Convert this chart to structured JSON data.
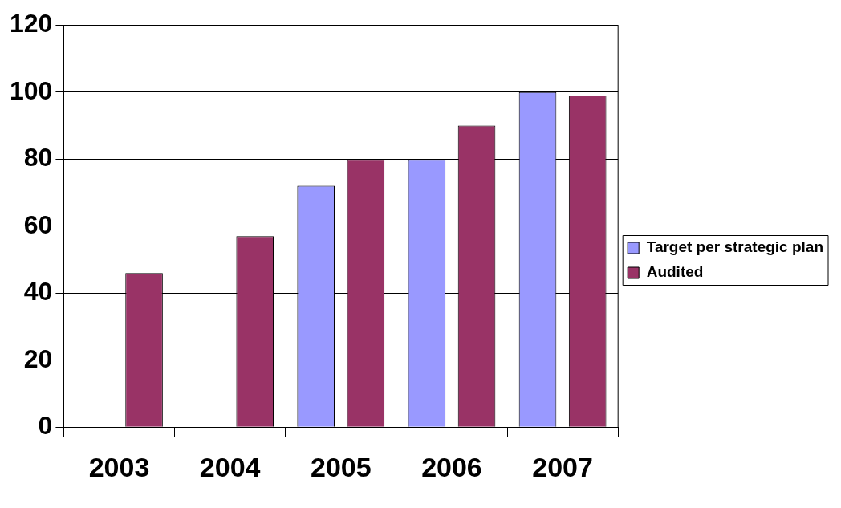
{
  "chart_data": {
    "type": "bar",
    "categories": [
      "2003",
      "2004",
      "2005",
      "2006",
      "2007"
    ],
    "series": [
      {
        "name": "Target per strategic plan",
        "color": "#9999ff",
        "values": [
          null,
          null,
          72,
          80,
          100
        ]
      },
      {
        "name": "Audited",
        "color": "#993366",
        "values": [
          46,
          57,
          80,
          90,
          99
        ]
      }
    ],
    "ylim": [
      0,
      120
    ],
    "yticks": [
      0,
      20,
      40,
      60,
      80,
      100,
      120
    ],
    "grid": "y",
    "legend": "right"
  }
}
